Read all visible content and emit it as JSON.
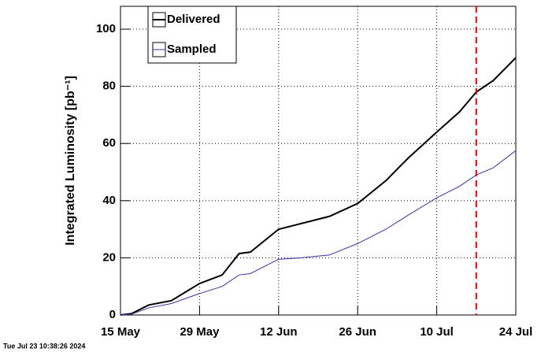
{
  "chart_data": {
    "type": "line",
    "ylabel": "Integrated Luminosity [pb⁻¹]",
    "timestamp": "Tue Jul 23 10:38:26 2024",
    "x": [
      "05-15",
      "05-17",
      "05-20",
      "05-24",
      "05-29",
      "06-02",
      "06-05",
      "06-07",
      "06-12",
      "06-16",
      "06-21",
      "06-26",
      "07-01",
      "07-05",
      "07-10",
      "07-14",
      "07-17",
      "07-20",
      "07-24"
    ],
    "series": [
      {
        "name": "Delivered",
        "color": "#000000",
        "values": [
          0,
          0.5,
          3.5,
          5,
          11,
          14,
          21.5,
          22,
          30,
          32,
          34.5,
          39,
          47,
          55,
          64,
          71,
          78,
          82,
          90
        ]
      },
      {
        "name": "Sampled",
        "color": "#3333aa",
        "values": [
          0,
          0.3,
          2.5,
          4,
          7.5,
          10,
          14,
          14.5,
          19.5,
          20,
          21,
          25,
          30,
          35,
          41,
          45,
          49,
          51.5,
          57.5
        ]
      }
    ],
    "xlim": [
      "05-15",
      "07-24"
    ],
    "xticks": [
      {
        "value": "05-15",
        "label": "15 May"
      },
      {
        "value": "05-29",
        "label": "29 May"
      },
      {
        "value": "06-12",
        "label": "12 Jun"
      },
      {
        "value": "06-26",
        "label": "26 Jun"
      },
      {
        "value": "07-10",
        "label": "10 Jul"
      },
      {
        "value": "07-24",
        "label": "24 Jul"
      }
    ],
    "ylim": [
      0,
      108
    ],
    "yticks": [
      0,
      20,
      40,
      60,
      80,
      100
    ],
    "grid": true,
    "marker_x": "07-17",
    "marker_color": "#ee0000",
    "legend": "upper-left"
  }
}
